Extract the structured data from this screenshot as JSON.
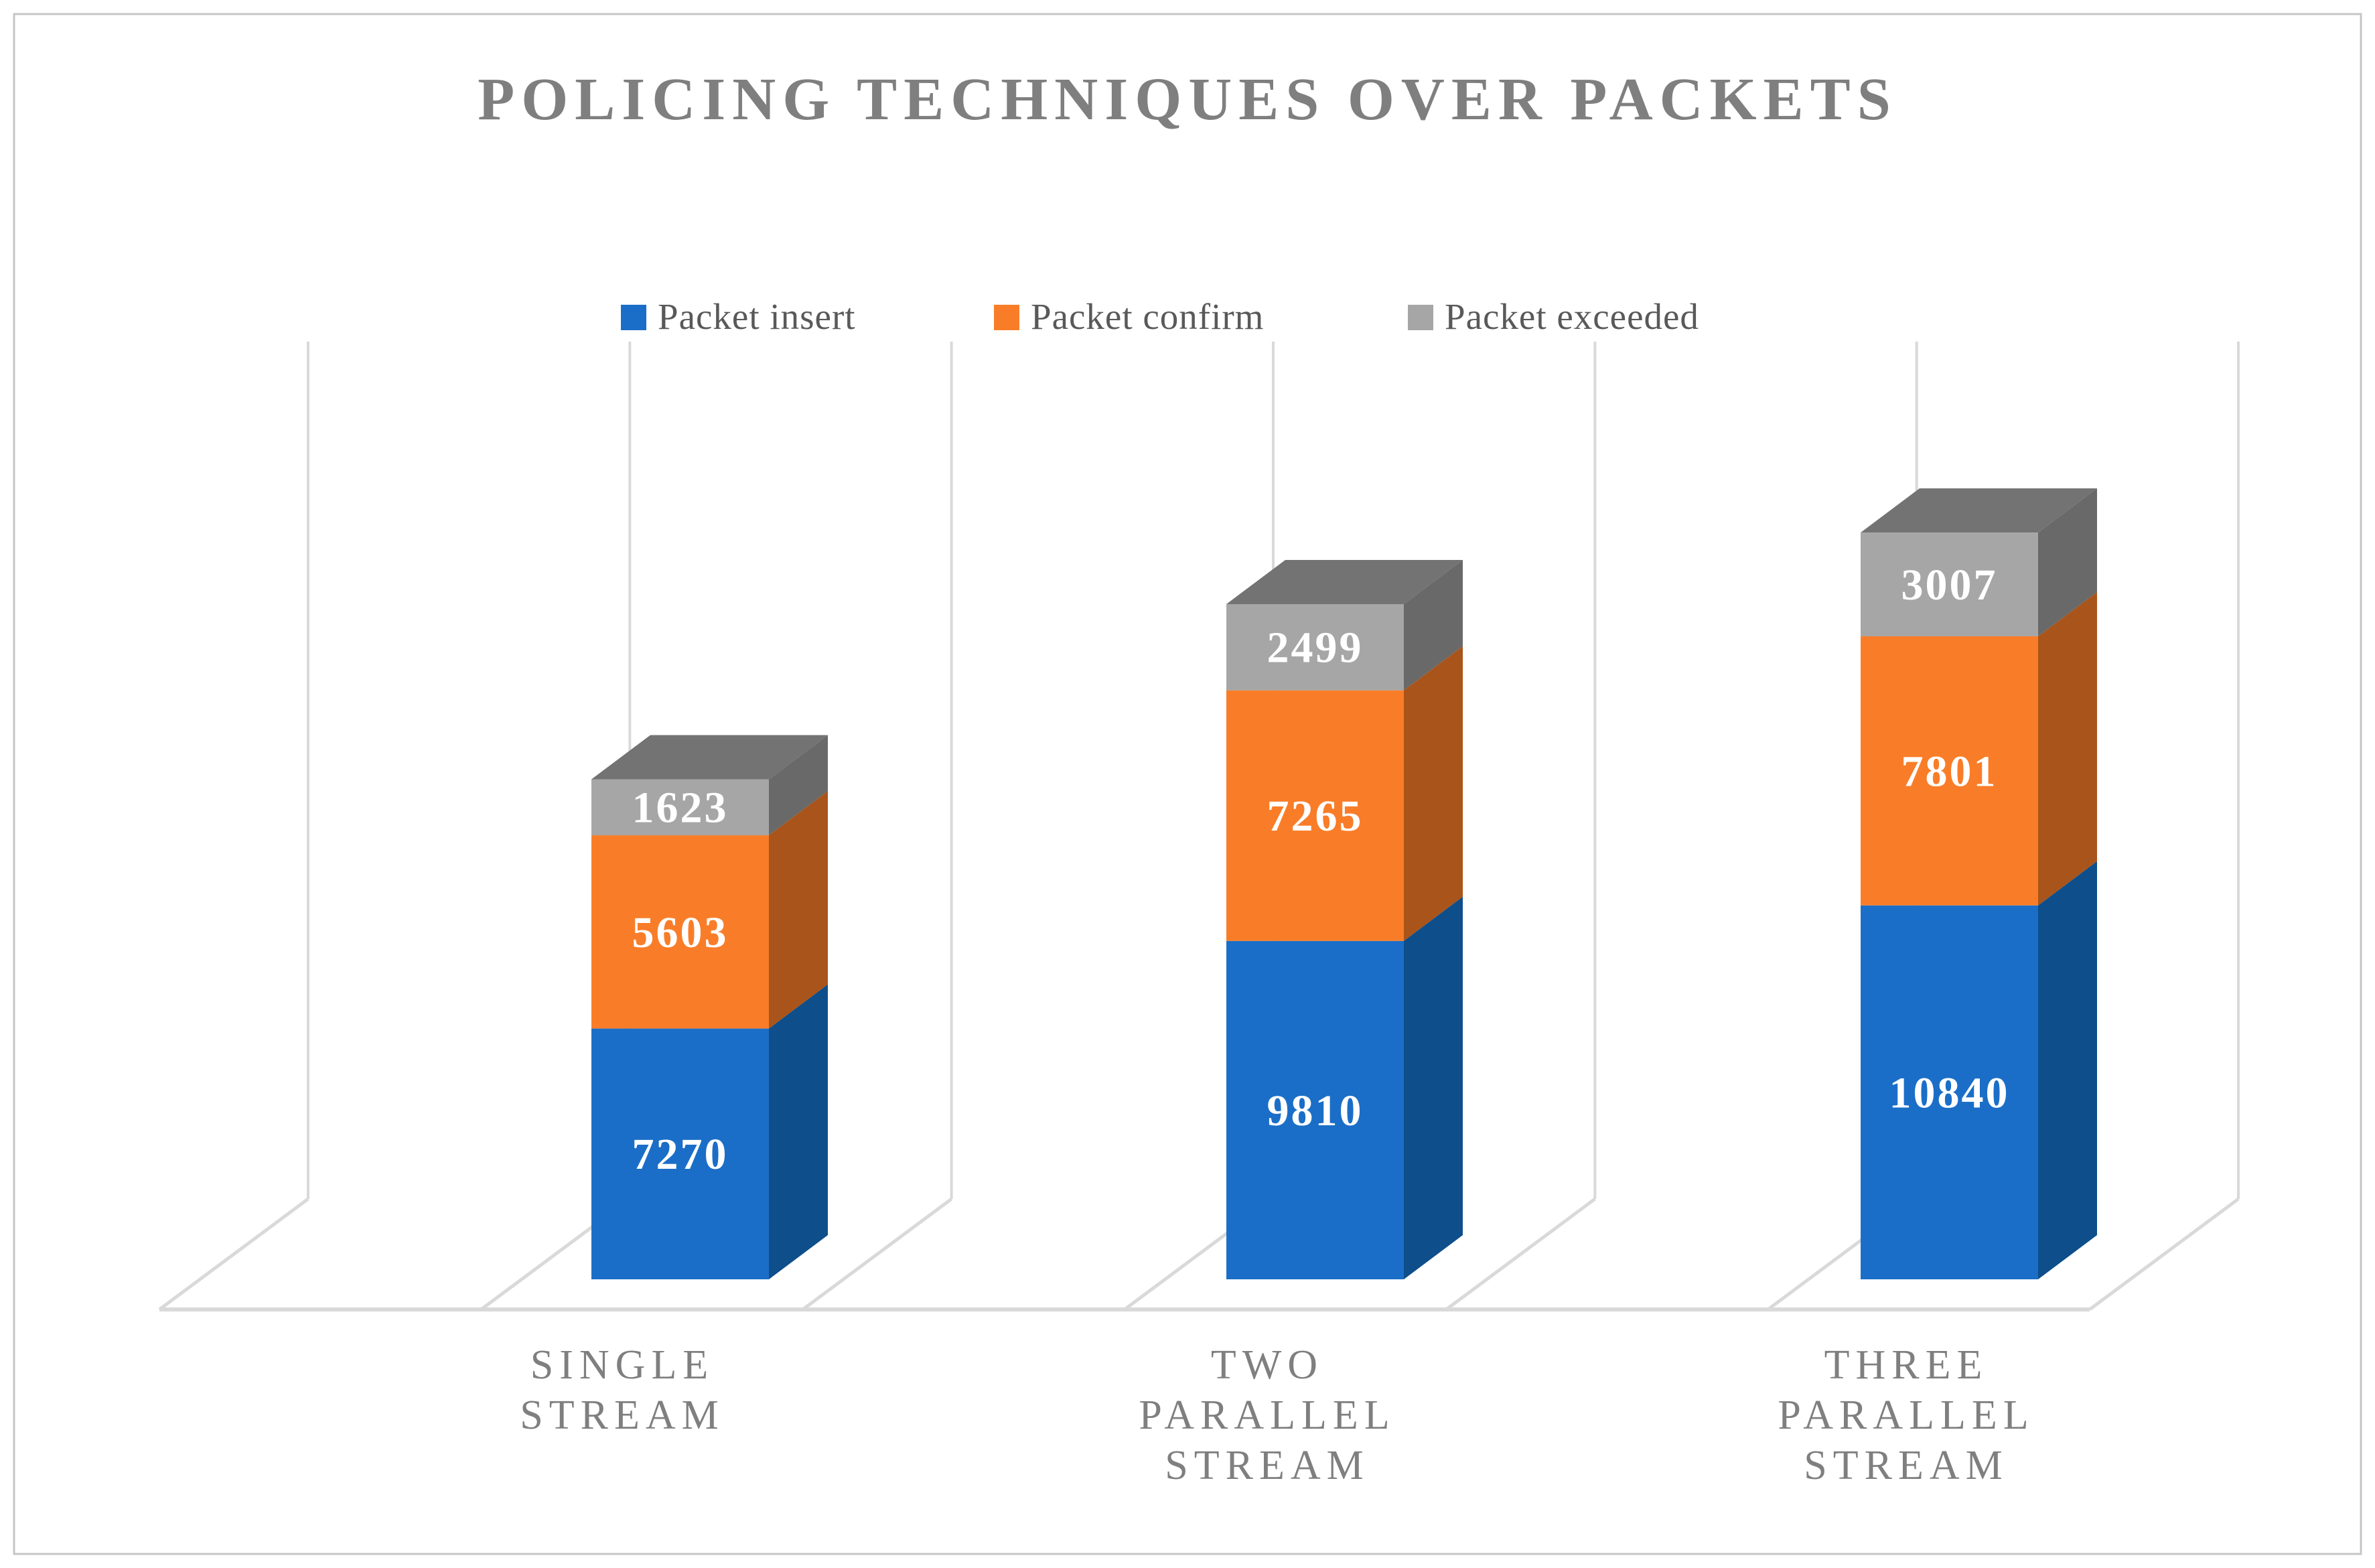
{
  "title": "POLICING TECHNIQUES OVER PACKETS",
  "chart_data": {
    "type": "bar",
    "subtype": "3d-stacked-column",
    "title": "POLICING TECHNIQUES OVER PACKETS",
    "categories": [
      "SINGLE STREAM",
      "TWO PARALLEL STREAM",
      "THREE PARALLEL STREAM"
    ],
    "series": [
      {
        "name": "Packet insert",
        "values": [
          7270,
          9810,
          10840
        ],
        "color": "#1b6ec7",
        "side_color": "#0d4e8b"
      },
      {
        "name": "Packet confirm",
        "values": [
          5603,
          7265,
          7801
        ],
        "color": "#f97d28",
        "side_color": "#a9541a"
      },
      {
        "name": "Packet exceeded",
        "values": [
          1623,
          2499,
          3007
        ],
        "color": "#a6a6a6",
        "side_color": "#696969",
        "top_color": "#737373"
      }
    ],
    "data_labels": [
      [
        "7270",
        "9810",
        "10840"
      ],
      [
        "5603",
        "7265",
        "7801"
      ],
      [
        "1623",
        "2499",
        "3007"
      ]
    ],
    "legend_position": "top",
    "legend_marker_colors": [
      "#1b6ec7",
      "#f97d28",
      "#a6a6a6"
    ],
    "value_axis_visible": false,
    "grid": true,
    "gridline_color": "#d9d9d9",
    "background_color": "#ffffff",
    "border_color": "#c5c5c5",
    "title_color": "#7f7f7f",
    "category_label_color": "#7f7f7f",
    "legend_text_color": "#595959",
    "data_label_color": "#ffffff"
  }
}
